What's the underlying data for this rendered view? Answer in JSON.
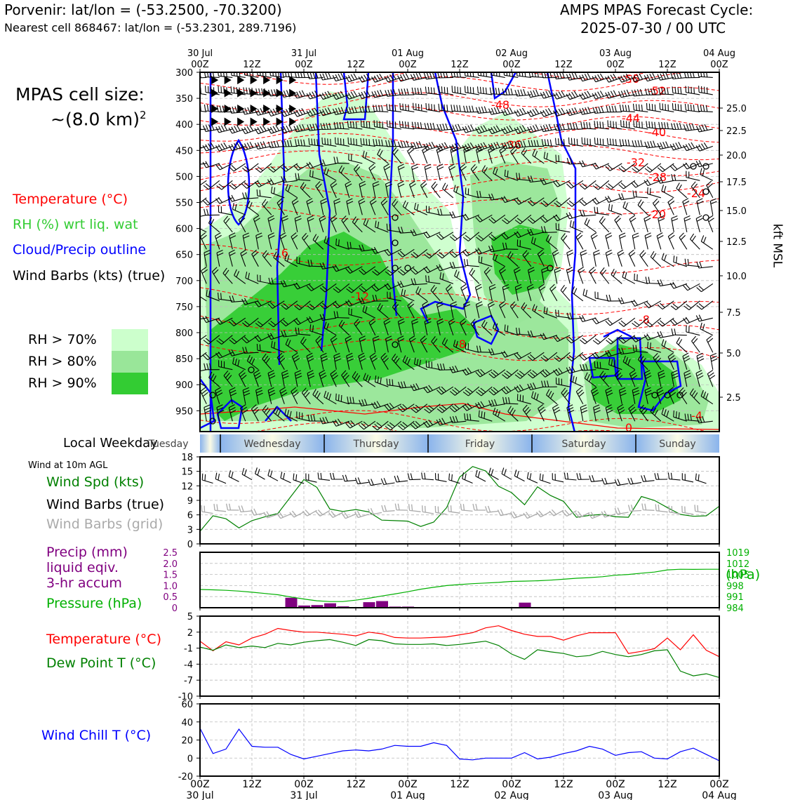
{
  "header": {
    "title_left": "Porvenir: lat/lon = (-53.2500, -70.3200)",
    "subtitle_left": "Nearest cell 868467: lat/lon = (-53.2301, 289.7196)",
    "title_right_line1": "AMPS MPAS Forecast Cycle:",
    "title_right_line2": "2025-07-30 / 00 UTC"
  },
  "sidebar": {
    "cell_size_label": "MPAS cell size:",
    "cell_size_value": "~(8.0 km)",
    "cell_size_exp": "2",
    "legend_temperature": "Temperature (°C)",
    "legend_rh": "RH (%) wrt liq. wat",
    "legend_cloud": "Cloud/Precip outline",
    "legend_barbs": "Wind Barbs (kts) (true)",
    "rh_levels": [
      "RH > 70%",
      "RH > 80%",
      "RH > 90%"
    ],
    "local_weekday_label": "Local Weekday",
    "wind_10m_label": "Wind at 10m AGL",
    "wind_spd_label": "Wind Spd (kts)",
    "wind_barbs_true_label": "Wind Barbs (true)",
    "wind_barbs_grid_label": "Wind Barbs (grid)",
    "precip_label_1": "Precip (mm)",
    "precip_label_2": "liquid eqiv.",
    "precip_label_3": "3-hr accum",
    "pressure_label": "Pressure (hPa)",
    "temp_label": "Temperature (°C)",
    "dew_label": "Dew Point T (°C)",
    "windchill_label": "Wind Chill T (°C)",
    "hpa_unit": "(hPa)",
    "kft_label": "kft MSL"
  },
  "colors": {
    "temperature": "#ff0000",
    "rh": "#33cc33",
    "cloud": "#0000ff",
    "barbs": "#000000",
    "barbs_grid": "#aaaaaa",
    "precip": "#800080",
    "pressure": "#00b000",
    "dewpoint": "#008000",
    "windchill": "#0000ff",
    "rh70": "#ccffcc",
    "rh80": "#99e699",
    "rh90": "#33cc33"
  },
  "chart_data": [
    {
      "type": "area",
      "title": "",
      "ylabel": "",
      "y_ticks": [
        "300",
        "350",
        "400",
        "450",
        "500",
        "550",
        "600",
        "650",
        "700",
        "750",
        "800",
        "850",
        "900",
        "950"
      ],
      "y2_ticks": [
        "25.0",
        "22.5",
        "20.0",
        "17.5",
        "15.0",
        "12.5",
        "10.0",
        "7.5",
        "5.0",
        "2.5"
      ],
      "y2_label": "kft MSL",
      "x_ticks_top": [
        {
          "l1": "30 Jul",
          "l2": "00Z"
        },
        {
          "l1": "",
          "l2": "12Z"
        },
        {
          "l1": "31 Jul",
          "l2": "00Z"
        },
        {
          "l1": "",
          "l2": "12Z"
        },
        {
          "l1": "01 Aug",
          "l2": "00Z"
        },
        {
          "l1": "",
          "l2": "12Z"
        },
        {
          "l1": "02 Aug",
          "l2": "00Z"
        },
        {
          "l1": "",
          "l2": "12Z"
        },
        {
          "l1": "03 Aug",
          "l2": "00Z"
        },
        {
          "l1": "",
          "l2": "12Z"
        },
        {
          "l1": "04 Aug",
          "l2": "00Z"
        }
      ],
      "temperature_contour_labels": [
        "-56",
        "-52",
        "-48",
        "-44",
        "-40",
        "-36",
        "-32",
        "-28",
        "-24",
        "-20",
        "-16",
        "-12",
        "-8",
        "-8",
        "-4",
        "0"
      ]
    },
    {
      "type": "table",
      "weekdays": [
        "Tuesday",
        "Wednesday",
        "Thursday",
        "Friday",
        "Saturday",
        "Sunday"
      ]
    },
    {
      "type": "line",
      "title": "Wind Spd (kts)",
      "y_ticks": [
        "0",
        "3",
        "6",
        "9",
        "12",
        "15",
        "18"
      ],
      "ylim": [
        0,
        18
      ],
      "x_hours": [
        0,
        3,
        6,
        9,
        12,
        15,
        18,
        21,
        24,
        27,
        30,
        33,
        36,
        39,
        42,
        45,
        48,
        51,
        54,
        57,
        60,
        63,
        66,
        69,
        72,
        75,
        78,
        81,
        84,
        87,
        90,
        93,
        96,
        99,
        102,
        105,
        108,
        111,
        114,
        117,
        120
      ],
      "values": [
        2.6,
        5.8,
        5.2,
        3.3,
        4.8,
        5.6,
        6.3,
        9.8,
        13.3,
        11.7,
        7.2,
        6.7,
        7.1,
        6.6,
        4.9,
        4.8,
        4.7,
        3.6,
        4.5,
        7.5,
        13.8,
        16.0,
        15.1,
        11.9,
        10.6,
        8.1,
        11.8,
        10.0,
        8.8,
        5.5,
        5.9,
        6.1,
        5.6,
        5.5,
        9.8,
        9.0,
        7.5,
        6.1,
        5.7,
        5.8,
        7.8
      ]
    },
    {
      "type": "bar",
      "title": "Precip (mm)",
      "y_ticks": [
        "0",
        "0.5",
        "1.0",
        "1.5",
        "2.0",
        "2.5"
      ],
      "ylim": [
        0,
        2.5
      ],
      "y2_ticks": [
        "984",
        "991",
        "998",
        "1005",
        "1012",
        "1019"
      ],
      "y2lim": [
        984,
        1019
      ],
      "precip_hours": [
        21,
        24,
        27,
        30,
        33,
        39,
        42,
        45,
        48,
        75
      ],
      "precip_values": [
        0.45,
        0.1,
        0.12,
        0.2,
        0.06,
        0.25,
        0.3,
        0.05,
        0.05,
        0.23
      ],
      "pressure_hours": [
        0,
        3,
        6,
        9,
        12,
        15,
        18,
        21,
        24,
        27,
        30,
        33,
        36,
        39,
        42,
        45,
        48,
        51,
        54,
        57,
        60,
        63,
        66,
        69,
        72,
        75,
        78,
        81,
        84,
        87,
        90,
        93,
        96,
        99,
        102,
        105,
        108,
        111,
        114,
        117,
        120
      ],
      "pressure_values": [
        995.5,
        995.3,
        995.0,
        994.5,
        993.8,
        993.0,
        992.2,
        990.8,
        989.5,
        988.4,
        987.9,
        987.9,
        988.8,
        990.0,
        991.4,
        992.7,
        994.1,
        995.7,
        996.9,
        998.0,
        998.6,
        999.2,
        999.6,
        1000.0,
        1000.6,
        1000.8,
        1001.0,
        1001.4,
        1002.0,
        1002.6,
        1003.0,
        1003.6,
        1004.5,
        1005.0,
        1005.8,
        1006.5,
        1007.9,
        1008.3,
        1008.2,
        1008.3,
        1008.3
      ]
    },
    {
      "type": "line",
      "title": "Temperature (°C)",
      "y_ticks": [
        "-10",
        "-7",
        "-4",
        "-1",
        "2",
        "5"
      ],
      "ylim": [
        -10,
        5
      ],
      "x_hours": [
        0,
        3,
        6,
        9,
        12,
        15,
        18,
        21,
        24,
        27,
        30,
        33,
        36,
        39,
        42,
        45,
        48,
        51,
        54,
        57,
        60,
        63,
        66,
        69,
        72,
        75,
        78,
        81,
        84,
        87,
        90,
        93,
        96,
        99,
        102,
        105,
        108,
        111,
        114,
        117,
        120
      ],
      "series": [
        {
          "name": "Temperature (°C)",
          "values": [
            0.3,
            -1.5,
            0.2,
            -0.4,
            0.9,
            1.6,
            2.7,
            2.3,
            2.0,
            2.0,
            1.8,
            1.6,
            1.3,
            2.0,
            1.7,
            1.0,
            0.9,
            0.9,
            1.0,
            1.1,
            1.5,
            1.9,
            2.8,
            3.2,
            2.3,
            1.6,
            1.2,
            1.2,
            0.5,
            1.3,
            1.9,
            1.9,
            1.9,
            -2.0,
            -1.6,
            -1.1,
            0.9,
            -1.3,
            1.5,
            -1.4,
            -2.6
          ]
        },
        {
          "name": "Dew Point T (°C)",
          "values": [
            -0.8,
            -1.4,
            -0.4,
            -0.9,
            -0.6,
            -0.9,
            -0.1,
            -0.4,
            0.1,
            0.4,
            0.6,
            0.1,
            -0.5,
            0.6,
            0.4,
            -0.2,
            -0.3,
            -0.3,
            -0.2,
            -0.5,
            -0.3,
            0.0,
            0.3,
            -0.5,
            -2.1,
            -3.1,
            -1.3,
            -1.7,
            -2.0,
            -2.6,
            -2.4,
            -1.6,
            -2.2,
            -2.6,
            -2.2,
            -1.5,
            -1.3,
            -5.3,
            -6.2,
            -5.8,
            -6.5
          ]
        }
      ]
    },
    {
      "type": "line",
      "title": "Wind Chill T (°C)",
      "y_ticks": [
        "-20",
        "0",
        "20",
        "40",
        "60"
      ],
      "ylim": [
        -20,
        60
      ],
      "x_hours": [
        0,
        3,
        6,
        9,
        12,
        15,
        18,
        21,
        24,
        27,
        30,
        33,
        36,
        39,
        42,
        45,
        48,
        51,
        54,
        57,
        60,
        63,
        66,
        69,
        72,
        75,
        78,
        81,
        84,
        87,
        90,
        93,
        96,
        99,
        102,
        105,
        108,
        111,
        114,
        117,
        120
      ],
      "values": [
        33,
        5,
        10,
        32,
        13,
        12,
        12,
        4,
        -1,
        2,
        5,
        8,
        9,
        8,
        10,
        14,
        13,
        13,
        17,
        14,
        -1,
        -2,
        0,
        0,
        0,
        6,
        -1,
        1,
        5,
        8,
        13,
        10,
        3,
        6,
        7,
        0,
        -1,
        7,
        11,
        4,
        -3
      ]
    }
  ],
  "x_ticks_bottom": [
    {
      "l1": "00Z",
      "l2": "30 Jul"
    },
    {
      "l1": "12Z",
      "l2": ""
    },
    {
      "l1": "00Z",
      "l2": "31 Jul"
    },
    {
      "l1": "12Z",
      "l2": ""
    },
    {
      "l1": "00Z",
      "l2": "01 Aug"
    },
    {
      "l1": "12Z",
      "l2": ""
    },
    {
      "l1": "00Z",
      "l2": "02 Aug"
    },
    {
      "l1": "12Z",
      "l2": ""
    },
    {
      "l1": "00Z",
      "l2": "03 Aug"
    },
    {
      "l1": "12Z",
      "l2": ""
    },
    {
      "l1": "00Z",
      "l2": "04 Aug"
    }
  ]
}
